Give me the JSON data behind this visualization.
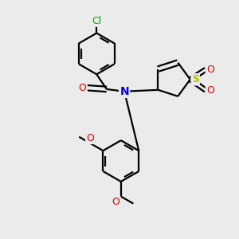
{
  "background_color": "#ebebeb",
  "atom_colors": {
    "C": "#000000",
    "N": "#0000ee",
    "O": "#dd0000",
    "S": "#bbbb00",
    "Cl": "#00aa00"
  },
  "bond_color": "#000000",
  "bond_width": 1.6,
  "figsize": [
    3.0,
    3.0
  ],
  "dpi": 100,
  "xlim": [
    -3.5,
    3.5
  ],
  "ylim": [
    -4.2,
    4.0
  ]
}
